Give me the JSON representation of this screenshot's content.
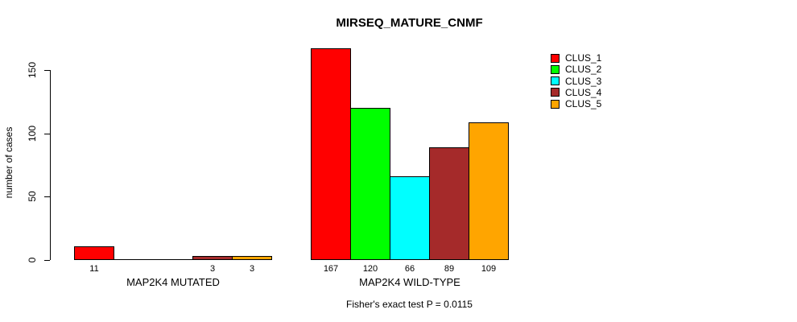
{
  "chart_data": {
    "type": "bar",
    "title": "MIRSEQ_MATURE_CNMF",
    "ylabel": "number of cases",
    "subtitle": "Fisher's exact test P = 0.0115",
    "yticks": [
      0,
      50,
      100,
      150
    ],
    "ylim": [
      0,
      167
    ],
    "grid": false,
    "legend_position": "top-right",
    "bar_border_color": "#000000",
    "axis_color": "#000000",
    "background_color": "#ffffff",
    "series": [
      {
        "name": "CLUS_1",
        "color": "#FF0000"
      },
      {
        "name": "CLUS_2",
        "color": "#00FF00"
      },
      {
        "name": "CLUS_3",
        "color": "#00FFFF"
      },
      {
        "name": "CLUS_4",
        "color": "#A52A2A"
      },
      {
        "name": "CLUS_5",
        "color": "#FFA500"
      }
    ],
    "groups": [
      {
        "label": "MAP2K4 MUTATED",
        "values": [
          11,
          0,
          0,
          3,
          3
        ],
        "value_labels": [
          "11",
          "",
          "",
          "3",
          "3"
        ]
      },
      {
        "label": "MAP2K4 WILD-TYPE",
        "values": [
          167,
          120,
          66,
          89,
          109
        ],
        "value_labels": [
          "167",
          "120",
          "66",
          "89",
          "109"
        ]
      }
    ]
  }
}
